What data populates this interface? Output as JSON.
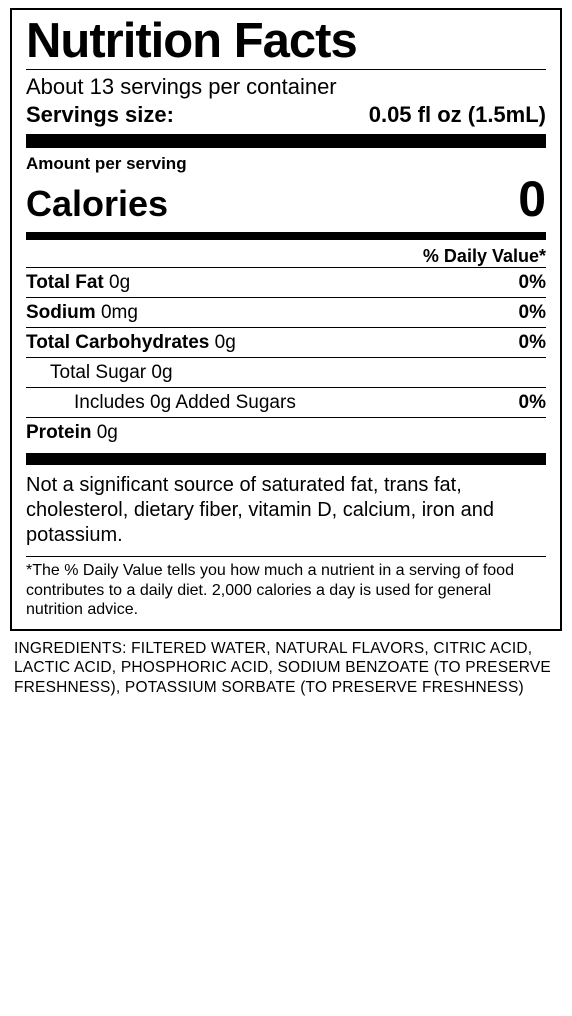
{
  "title": "Nutrition Facts",
  "servings_per": "About 13 servings per container",
  "serving_size_label": "Servings size:",
  "serving_size_value": "0.05 fl oz (1.5mL)",
  "amount_per_serving": "Amount per serving",
  "calories_label": "Calories",
  "calories_value": "0",
  "dv_header": "% Daily Value*",
  "nutrients": [
    {
      "bold": true,
      "indent": 0,
      "name": "Total Fat",
      "amount": "0g",
      "dv": "0%"
    },
    {
      "bold": true,
      "indent": 0,
      "name": "Sodium",
      "amount": "0mg",
      "dv": "0%"
    },
    {
      "bold": true,
      "indent": 0,
      "name": "Total Carbohydrates",
      "amount": "0g",
      "dv": "0%"
    },
    {
      "bold": false,
      "indent": 1,
      "name": "Total Sugar",
      "amount": "0g",
      "dv": ""
    },
    {
      "bold": false,
      "indent": 2,
      "name": "Includes 0g Added Sugars",
      "amount": "",
      "dv": "0%"
    },
    {
      "bold": true,
      "indent": 0,
      "name": "Protein",
      "amount": "0g",
      "dv": ""
    }
  ],
  "not_significant": "Not a significant source of saturated fat, trans fat, cholesterol, dietary fiber, vitamin D, calcium, iron and potassium.",
  "footnote": "*The % Daily Value tells you how much a nutrient in a serving of food contributes to a daily diet. 2,000 calories a day is used for general nutrition advice.",
  "ingredients": "INGREDIENTS: FILTERED WATER, NATURAL FLAVORS, CITRIC ACID, LACTIC ACID, PHOSPHORIC ACID, SODIUM BENZOATE (TO PRESERVE FRESHNESS), POTASSIUM SORBATE (TO PRESERVE FRESHNESS)",
  "colors": {
    "border": "#000000",
    "text": "#000000",
    "bg": "#ffffff"
  },
  "typography": {
    "title_weight": 800,
    "default_family": "Helvetica, Arial, sans-serif"
  }
}
